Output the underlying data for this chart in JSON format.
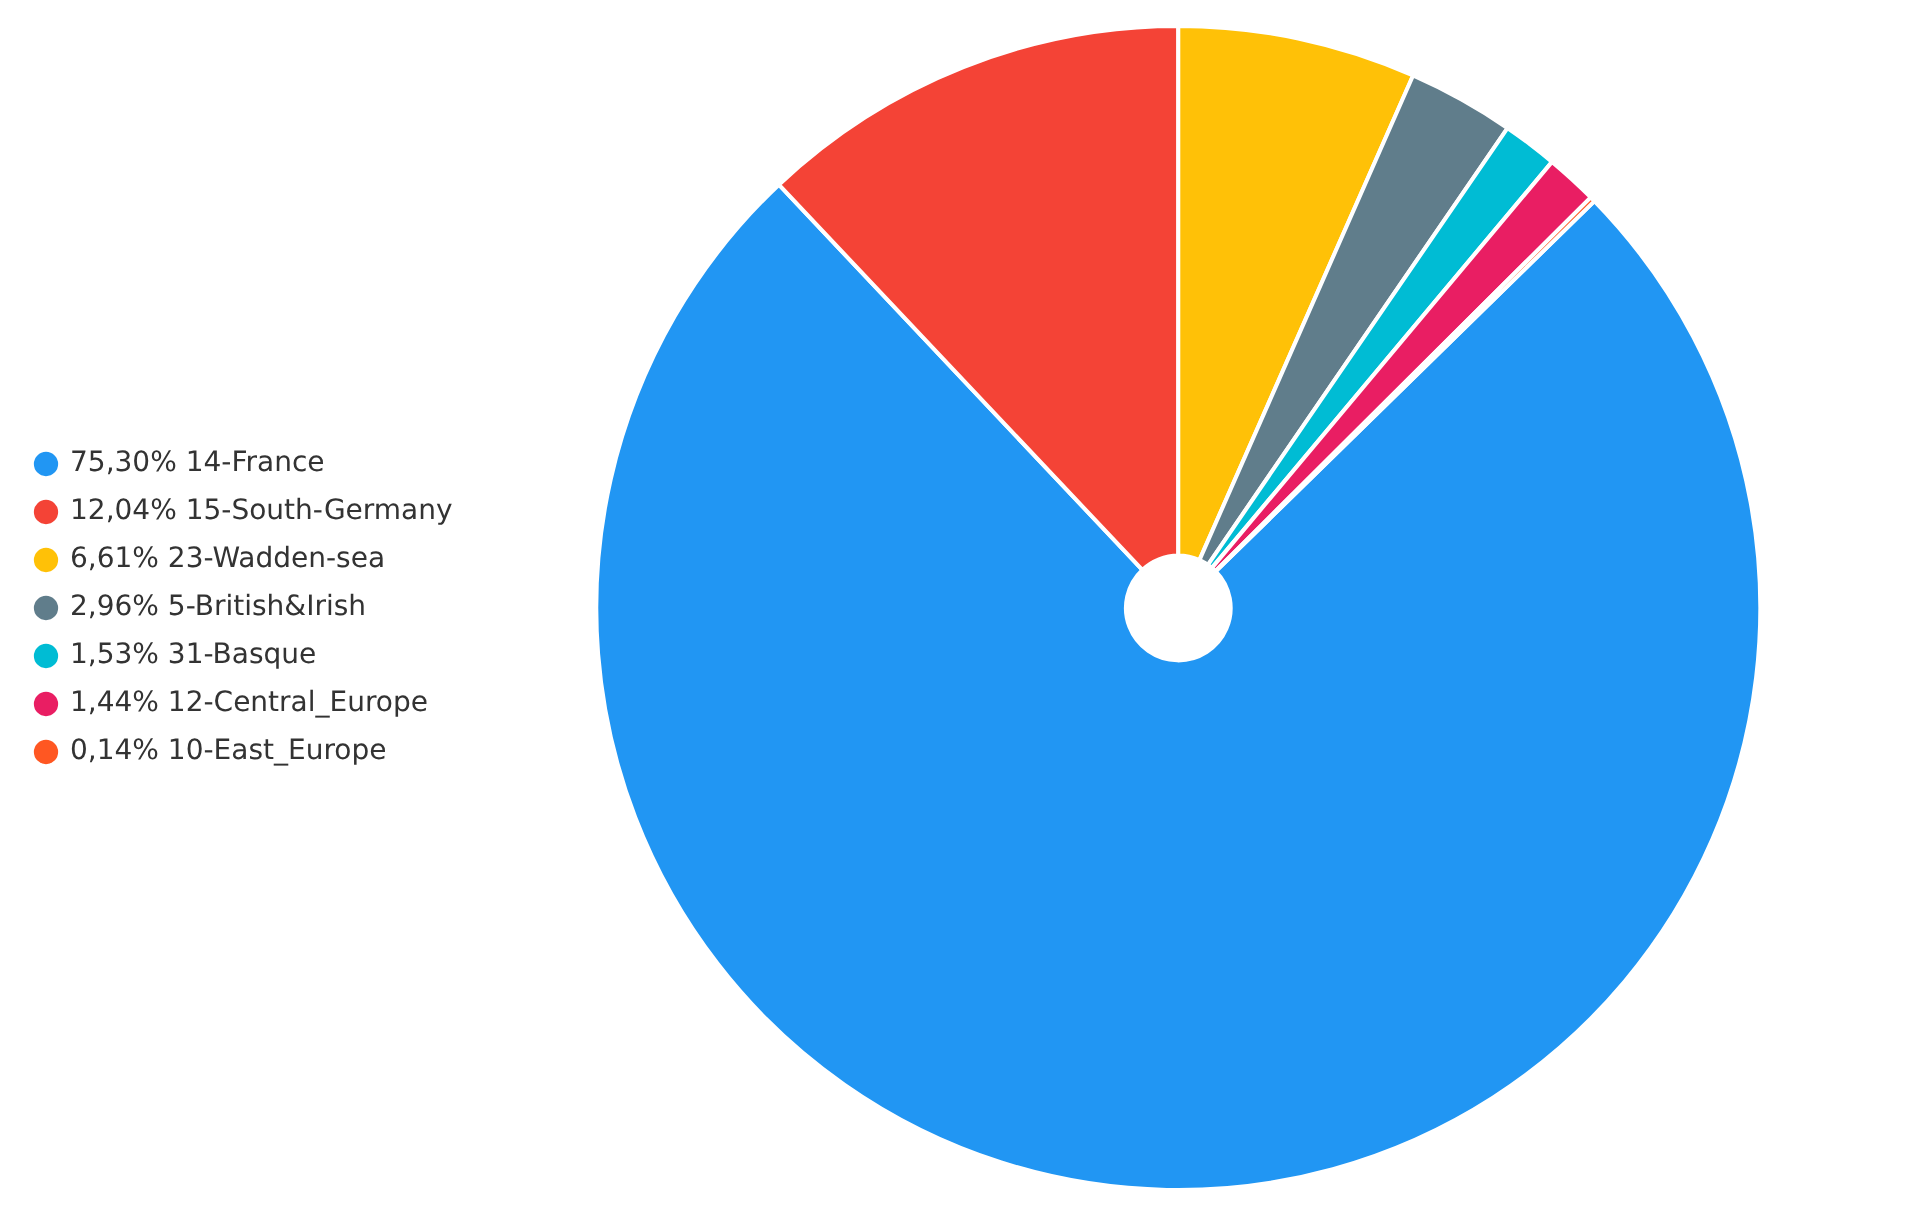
{
  "chart_data": {
    "type": "pie",
    "categories": [
      "75,30% 14-France",
      "12,04% 15-South-Germany",
      "6,61% 23-Wadden-sea",
      "2,96% 5-British&Irish",
      "1,53% 31-Basque",
      "1,44% 12-Central_Europe",
      "0,14% 10-East_Europe"
    ],
    "values": [
      75.3,
      12.04,
      6.61,
      2.96,
      1.53,
      1.44,
      0.14
    ],
    "colors": [
      "#2196f3",
      "#f44336",
      "#ffc107",
      "#607d8b",
      "#00bcd4",
      "#e91e63",
      "#ff5722"
    ],
    "legend": "left"
  }
}
